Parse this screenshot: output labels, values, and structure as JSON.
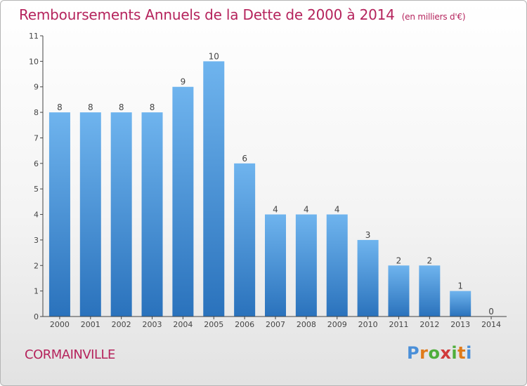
{
  "header": {
    "title": "Remboursements Annuels de la Dette de 2000 à 2014",
    "unit": "(en milliers d'€)"
  },
  "footer": {
    "city": "CORMAINVILLE",
    "logo": {
      "letters": [
        "P",
        "r",
        "o",
        "x",
        "i",
        "t",
        "i"
      ],
      "colors": [
        "#4a8fd8",
        "#e07b1a",
        "#4fae3b",
        "#d13a3a",
        "#4fae3b",
        "#e07b1a",
        "#4a8fd8"
      ]
    }
  },
  "chart_data": {
    "type": "bar",
    "title": "Remboursements Annuels de la Dette de 2000 à 2014",
    "categories": [
      "2000",
      "2001",
      "2002",
      "2003",
      "2004",
      "2005",
      "2006",
      "2007",
      "2008",
      "2009",
      "2010",
      "2011",
      "2012",
      "2013",
      "2014"
    ],
    "values": [
      8,
      8,
      8,
      8,
      9,
      10,
      6,
      4,
      4,
      4,
      3,
      2,
      2,
      1,
      0
    ],
    "data_labels": [
      "8",
      "8",
      "8",
      "8",
      "9",
      "10",
      "6",
      "4",
      "4",
      "4",
      "3",
      "2",
      "2",
      "1",
      "0"
    ],
    "ylim": [
      0,
      11
    ],
    "yticks": [
      "0",
      "1",
      "2",
      "3",
      "4",
      "5",
      "6",
      "7",
      "8",
      "9",
      "10",
      "11"
    ],
    "xlabel": "",
    "ylabel": "",
    "grid": false,
    "colors": {
      "bar_top": "#6fb4ee",
      "bar_bottom": "#2a72bc",
      "axis": "#444444",
      "text": "#444444"
    }
  }
}
